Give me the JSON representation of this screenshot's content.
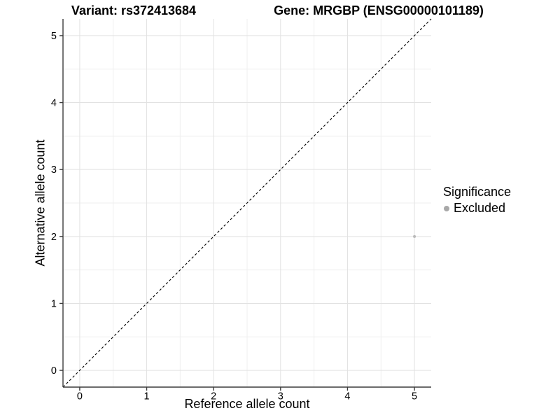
{
  "chart_data": {
    "type": "scatter",
    "title_left": "Variant: rs372413684",
    "title_right": "Gene: MRGBP (ENSG00000101189)",
    "xlabel": "Reference allele count",
    "ylabel": "Alternative allele count",
    "xlim": [
      -0.25,
      5.25
    ],
    "ylim": [
      -0.25,
      5.25
    ],
    "x_ticks": [
      0,
      1,
      2,
      3,
      4,
      5
    ],
    "y_ticks": [
      0,
      1,
      2,
      3,
      4,
      5
    ],
    "x_minor_ticks": [
      0.5,
      1.5,
      2.5,
      3.5,
      4.5
    ],
    "y_minor_ticks": [
      0.5,
      1.5,
      2.5,
      3.5,
      4.5
    ],
    "grid": {
      "show": true,
      "major_color": "#e2e2e2",
      "minor_color": "#efefef"
    },
    "axis_color": "#3c3c3c",
    "text_color": "#000000",
    "series": [
      {
        "name": "Excluded",
        "color": "#b9b9b9",
        "point_radius": 2,
        "points": [
          {
            "x": 5,
            "y": 2
          }
        ]
      }
    ],
    "reference_line": {
      "type": "identity",
      "style": "dashed",
      "color": "#000000"
    },
    "legend": {
      "title": "Significance",
      "position": "right",
      "entries": [
        {
          "label": "Excluded",
          "color": "#a8a8a8"
        }
      ]
    }
  }
}
